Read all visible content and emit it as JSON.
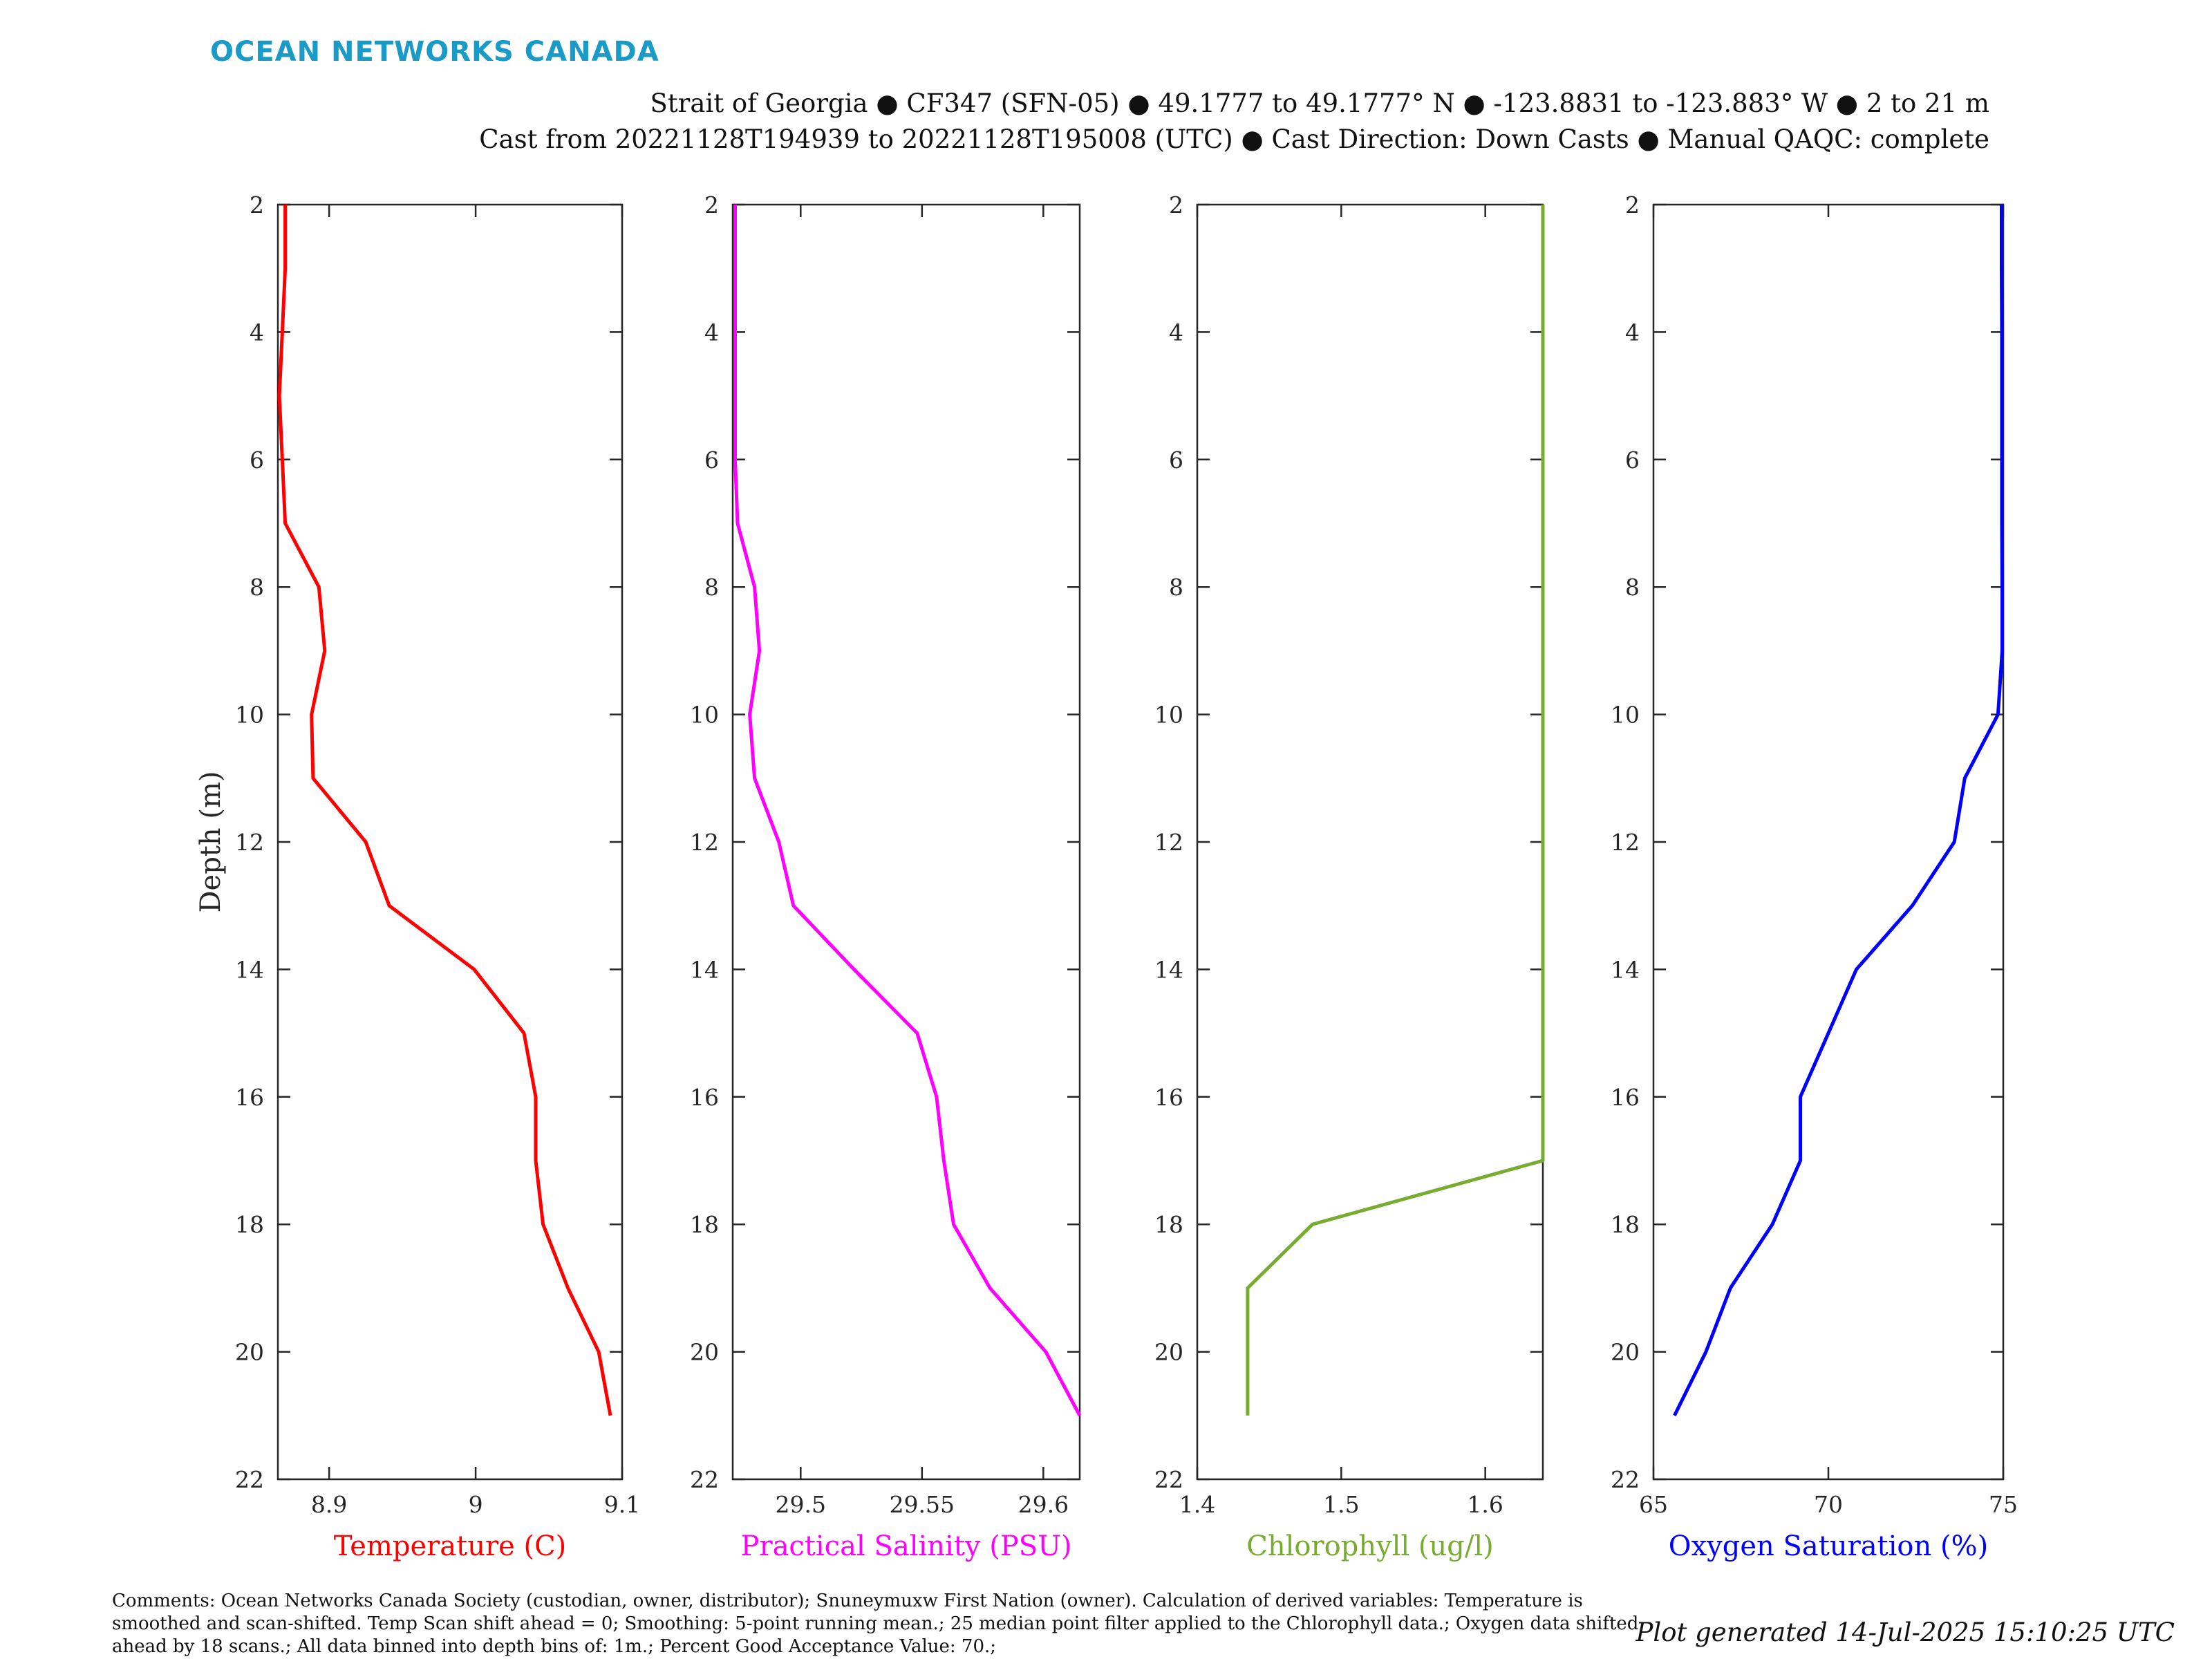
{
  "brand": "OCEAN NETWORKS CANADA",
  "header": {
    "line1": "Strait of Georgia ● CF347 (SFN-05) ● 49.1777 to 49.1777° N ● -123.8831 to -123.883° W ● 2 to 21 m",
    "line2": "Cast from 20221128T194939 to 20221128T195008 (UTC) ● Cast Direction: Down Casts ● Manual QAQC: complete"
  },
  "footer": {
    "comments": "Comments: Ocean Networks Canada Society (custodian, owner, distributor); Snuneymuxw First Nation (owner). Calculation of derived variables: Temperature is smoothed and scan-shifted. Temp Scan shift ahead = 0; Smoothing: 5-point running mean.; 25 median point filter applied to the Chlorophyll data.; Oxygen data shifted ahead by 18 scans.; All data binned into depth bins of: 1m.; Percent Good Acceptance Value: 70.;",
    "generated": "Plot generated 14-Jul-2025 15:10:25 UTC"
  },
  "chart_data": [
    {
      "type": "line",
      "ylabel": "Depth (m)",
      "ylim": [
        2,
        22
      ],
      "y_reversed": true,
      "yticks": [
        2,
        4,
        6,
        8,
        10,
        12,
        14,
        16,
        18,
        20,
        22
      ],
      "xlabel": "Temperature (C)",
      "xlim": [
        8.865,
        9.1
      ],
      "xticks": [
        8.9,
        9,
        9.1
      ],
      "xtick_labels": [
        "8.9",
        "9",
        "9.1"
      ],
      "color": "#ff0000",
      "depth": [
        2,
        3,
        4,
        5,
        6,
        7,
        8,
        9,
        10,
        11,
        12,
        13,
        14,
        15,
        16,
        17,
        18,
        19,
        20,
        21
      ],
      "values": [
        8.87,
        8.87,
        8.868,
        8.866,
        8.868,
        8.87,
        8.893,
        8.897,
        8.888,
        8.889,
        8.925,
        8.941,
        8.999,
        9.033,
        9.041,
        9.041,
        9.046,
        9.063,
        9.084,
        9.092
      ]
    },
    {
      "type": "line",
      "ylabel": "",
      "ylim": [
        2,
        22
      ],
      "y_reversed": true,
      "yticks": [
        2,
        4,
        6,
        8,
        10,
        12,
        14,
        16,
        18,
        20,
        22
      ],
      "xlabel": "Practical Salinity (PSU)",
      "xlim": [
        29.472,
        29.615
      ],
      "xticks": [
        29.5,
        29.55,
        29.6
      ],
      "xtick_labels": [
        "29.5",
        "29.55",
        "29.6"
      ],
      "color": "#ff00ff",
      "depth": [
        2,
        3,
        4,
        5,
        6,
        7,
        8,
        9,
        10,
        11,
        12,
        13,
        14,
        15,
        16,
        17,
        18,
        19,
        20,
        21
      ],
      "values": [
        29.473,
        29.473,
        29.473,
        29.473,
        29.473,
        29.474,
        29.481,
        29.483,
        29.479,
        29.481,
        29.491,
        29.497,
        29.522,
        29.548,
        29.556,
        29.559,
        29.563,
        29.578,
        29.601,
        29.615
      ]
    },
    {
      "type": "line",
      "ylabel": "",
      "ylim": [
        2,
        22
      ],
      "y_reversed": true,
      "yticks": [
        2,
        4,
        6,
        8,
        10,
        12,
        14,
        16,
        18,
        20,
        22
      ],
      "xlabel": "Chlorophyll (ug/l)",
      "xlim": [
        1.4,
        1.64
      ],
      "xticks": [
        1.4,
        1.5,
        1.6
      ],
      "xtick_labels": [
        "1.4",
        "1.5",
        "1.6"
      ],
      "color": "#77ac30",
      "depth": [
        2,
        3,
        4,
        5,
        6,
        7,
        8,
        9,
        10,
        11,
        12,
        13,
        14,
        15,
        16,
        17,
        18,
        19,
        20,
        21
      ],
      "values": [
        1.64,
        1.64,
        1.64,
        1.64,
        1.64,
        1.64,
        1.64,
        1.64,
        1.64,
        1.64,
        1.64,
        1.64,
        1.64,
        1.64,
        1.64,
        1.64,
        1.48,
        1.435,
        1.435,
        1.435
      ]
    },
    {
      "type": "line",
      "ylabel": "",
      "ylim": [
        2,
        22
      ],
      "y_reversed": true,
      "yticks": [
        2,
        4,
        6,
        8,
        10,
        12,
        14,
        16,
        18,
        20,
        22
      ],
      "xlabel": "Oxygen Saturation (%)",
      "xlim": [
        65,
        75
      ],
      "xticks": [
        65,
        70,
        75
      ],
      "xtick_labels": [
        "65",
        "70",
        "75"
      ],
      "color": "#0000ff",
      "depth": [
        2,
        3,
        4,
        5,
        6,
        7,
        8,
        9,
        10,
        11,
        12,
        13,
        14,
        15,
        16,
        17,
        18,
        19,
        20,
        21
      ],
      "values": [
        74.95,
        74.95,
        74.96,
        74.96,
        74.96,
        74.96,
        74.97,
        74.97,
        74.85,
        73.9,
        73.6,
        72.4,
        70.8,
        70.0,
        69.2,
        69.2,
        68.4,
        67.2,
        66.5,
        65.6
      ]
    }
  ]
}
